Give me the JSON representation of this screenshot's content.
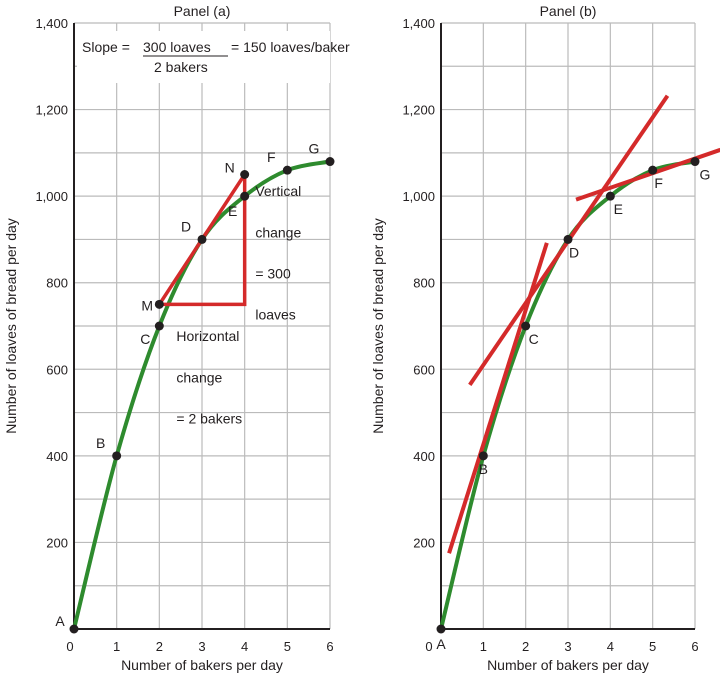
{
  "chart_data": [
    {
      "type": "line",
      "title": "Panel (a)",
      "xlabel": "Number of bakers per day",
      "ylabel": "Number of loaves of bread per day",
      "xlim": [
        0,
        6
      ],
      "ylim": [
        0,
        1400
      ],
      "xticks": [
        0,
        1,
        2,
        3,
        4,
        5,
        6
      ],
      "yticks": [
        200,
        400,
        600,
        800,
        1000,
        1200,
        1400
      ],
      "ytick_labels": [
        "200",
        "400",
        "600",
        "800",
        "1,000",
        "1,200",
        "1,400"
      ],
      "grid": true,
      "points": [
        {
          "label": "A",
          "x": 0,
          "y": 0
        },
        {
          "label": "B",
          "x": 1,
          "y": 400
        },
        {
          "label": "C",
          "x": 2,
          "y": 700
        },
        {
          "label": "D",
          "x": 3,
          "y": 900
        },
        {
          "label": "E",
          "x": 4,
          "y": 1000
        },
        {
          "label": "F",
          "x": 5,
          "y": 1060
        },
        {
          "label": "G",
          "x": 6,
          "y": 1080
        }
      ],
      "extra_points": [
        {
          "label": "M",
          "x": 2,
          "y": 750
        },
        {
          "label": "N",
          "x": 4,
          "y": 1050
        }
      ],
      "slope_note": {
        "prefix": "Slope = ",
        "numerator": "300 loaves",
        "denominator": "2 bakers",
        "result": "= 150 loaves/baker"
      },
      "annotations": [
        {
          "text": "Vertical",
          "x": 4.25,
          "y": 1000
        },
        {
          "text": "change",
          "x": 4.25,
          "y": 905
        },
        {
          "text": "= 300",
          "x": 4.25,
          "y": 810
        },
        {
          "text": "loaves",
          "x": 4.25,
          "y": 715
        },
        {
          "text": "Horizontal",
          "x": 2.4,
          "y": 665
        },
        {
          "text": "change",
          "x": 2.4,
          "y": 570
        },
        {
          "text": "= 2 bakers",
          "x": 2.4,
          "y": 475
        }
      ],
      "series_color": "#2e8b2e",
      "accent_color": "#d42a2a"
    },
    {
      "type": "line",
      "title": "Panel (b)",
      "xlabel": "Number of bakers per day",
      "ylabel": "Number of loaves of bread per day",
      "xlim": [
        0,
        6
      ],
      "ylim": [
        0,
        1400
      ],
      "xticks": [
        0,
        1,
        2,
        3,
        4,
        5,
        6
      ],
      "yticks": [
        200,
        400,
        600,
        800,
        1000,
        1200,
        1400
      ],
      "ytick_labels": [
        "200",
        "400",
        "600",
        "800",
        "1,000",
        "1,200",
        "1,400"
      ],
      "grid": true,
      "points": [
        {
          "label": "A",
          "x": 0,
          "y": 0
        },
        {
          "label": "B",
          "x": 1,
          "y": 400
        },
        {
          "label": "C",
          "x": 2,
          "y": 700
        },
        {
          "label": "D",
          "x": 3,
          "y": 900
        },
        {
          "label": "E",
          "x": 4,
          "y": 1000
        },
        {
          "label": "F",
          "x": 5,
          "y": 1060
        },
        {
          "label": "G",
          "x": 6,
          "y": 1080
        }
      ],
      "tangents": [
        {
          "at": "B",
          "from": [
            0.19,
            175
          ],
          "to": [
            2.5,
            892
          ]
        },
        {
          "at": "D",
          "from": [
            0.68,
            564
          ],
          "to": [
            5.35,
            1232
          ]
        },
        {
          "at": "F",
          "from": [
            3.19,
            992
          ],
          "to": [
            6.6,
            1107
          ]
        }
      ],
      "series_color": "#2e8b2e",
      "accent_color": "#d42a2a"
    }
  ]
}
